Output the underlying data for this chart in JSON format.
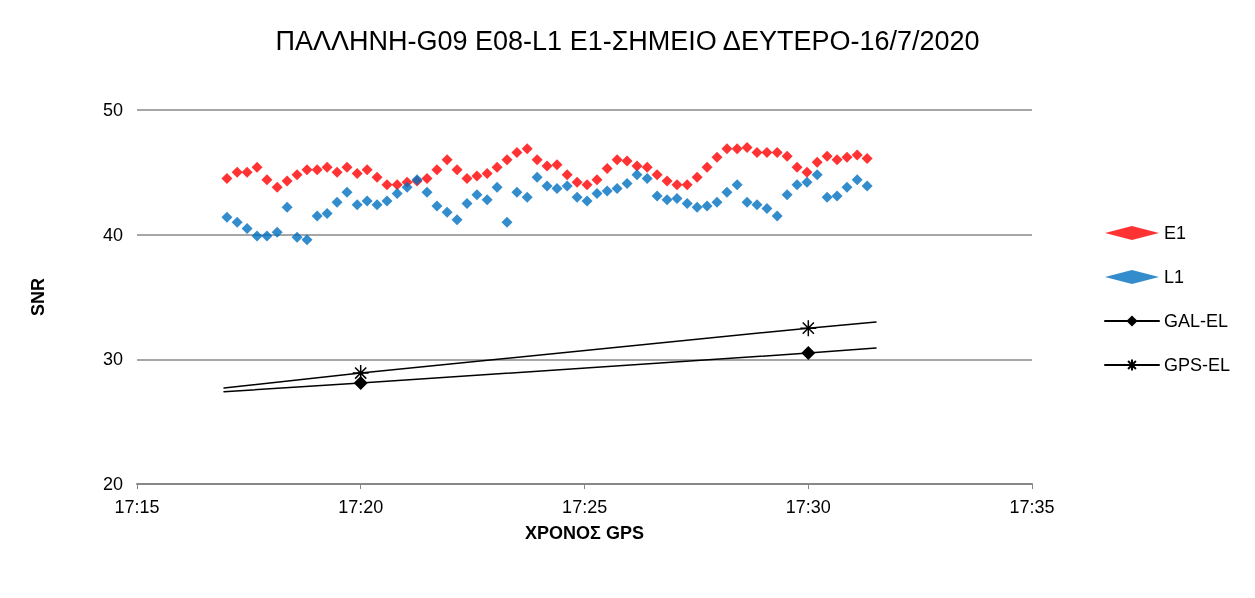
{
  "chart_data": {
    "type": "scatter",
    "title": "ΠΑΛΛΗΝΗ-G09 E08-L1 E1-ΣΗΜΕΙΟ ΔΕΥΤΕΡΟ-16/7/2020",
    "xlabel": "ΧΡΟΝΟΣ GPS",
    "ylabel": "SNR",
    "x": [
      17.2835,
      17.2873,
      17.291,
      17.2947,
      17.2984,
      17.3022,
      17.3059,
      17.3096,
      17.3133,
      17.3171,
      17.3208,
      17.3245,
      17.3282,
      17.332,
      17.3357,
      17.3394,
      17.3431,
      17.3469,
      17.3506,
      17.3543,
      17.358,
      17.3617,
      17.3655,
      17.3692,
      17.3729,
      17.3766,
      17.3804,
      17.3841,
      17.3878,
      17.3915,
      17.3953,
      17.399,
      17.4027,
      17.4064,
      17.4102,
      17.4139,
      17.4176,
      17.4213,
      17.4251,
      17.4288,
      17.4325,
      17.4362,
      17.44,
      17.4437,
      17.4474,
      17.4511,
      17.4549,
      17.4586,
      17.4623,
      17.466,
      17.4697,
      17.4735,
      17.4772,
      17.4809,
      17.4846,
      17.4884,
      17.4921,
      17.4958,
      17.4995,
      17.5033,
      17.507,
      17.5107,
      17.5144,
      17.5182,
      17.5219
    ],
    "series": [
      {
        "name": "E1",
        "marker": "diamond",
        "color": "#ff0000",
        "values": [
          44.5,
          45.0,
          45.0,
          45.4,
          44.4,
          43.8,
          44.3,
          44.8,
          45.2,
          45.2,
          45.4,
          45.0,
          45.4,
          44.9,
          45.2,
          44.6,
          44.0,
          44.0,
          44.2,
          44.3,
          44.5,
          45.2,
          46.0,
          45.2,
          44.5,
          44.7,
          44.9,
          45.4,
          46.0,
          46.6,
          46.9,
          46.0,
          45.5,
          45.6,
          44.8,
          44.2,
          44.0,
          44.4,
          45.3,
          46.0,
          45.9,
          45.5,
          45.4,
          44.8,
          44.3,
          44.0,
          44.0,
          44.6,
          45.4,
          46.2,
          46.9,
          46.9,
          47.0,
          46.6,
          46.6,
          46.6,
          46.3,
          45.4,
          45.0,
          45.8,
          46.3,
          46.0,
          46.2,
          46.4,
          46.1
        ]
      },
      {
        "name": "L1",
        "marker": "diamond",
        "color": "#0070c0",
        "values": [
          41.4,
          41.0,
          40.5,
          39.9,
          39.9,
          40.2,
          42.2,
          39.8,
          39.6,
          41.5,
          41.7,
          42.6,
          43.4,
          42.4,
          42.7,
          42.4,
          42.7,
          43.3,
          43.8,
          44.4,
          43.4,
          42.3,
          41.8,
          41.2,
          42.5,
          43.2,
          42.8,
          43.8,
          41.0,
          43.4,
          43.0,
          44.6,
          43.9,
          43.7,
          43.9,
          43.0,
          42.7,
          43.3,
          43.5,
          43.7,
          44.1,
          44.8,
          44.5,
          43.1,
          42.8,
          42.9,
          42.5,
          42.2,
          42.3,
          42.6,
          43.4,
          44.0,
          42.6,
          42.4,
          42.1,
          41.5,
          43.2,
          44.0,
          44.2,
          44.8,
          43.0,
          43.1,
          43.8,
          44.4,
          43.9
        ]
      },
      {
        "name": "GAL-EL",
        "type": "line",
        "marker": "diamond",
        "color": "#000000",
        "x": [
          17.2824,
          17.3333,
          17.5,
          17.5252
        ],
        "values": [
          27.4,
          28.1,
          30.5,
          30.9
        ]
      },
      {
        "name": "GPS-EL",
        "type": "line",
        "marker": "cross",
        "color": "#000000",
        "x": [
          17.2824,
          17.3333,
          17.5,
          17.5252
        ],
        "values": [
          27.7,
          28.9,
          32.5,
          33.0
        ]
      }
    ],
    "xlim": [
      17.25,
      17.5833
    ],
    "xticks": [
      {
        "value": 17.25,
        "label": "17:15"
      },
      {
        "value": 17.3333,
        "label": "17:20"
      },
      {
        "value": 17.4167,
        "label": "17:25"
      },
      {
        "value": 17.5,
        "label": "17:30"
      },
      {
        "value": 17.5833,
        "label": "17:35"
      }
    ],
    "ylim": [
      20,
      50
    ],
    "yticks": [
      20,
      30,
      40,
      50
    ],
    "grid": "y",
    "legend": "right"
  }
}
